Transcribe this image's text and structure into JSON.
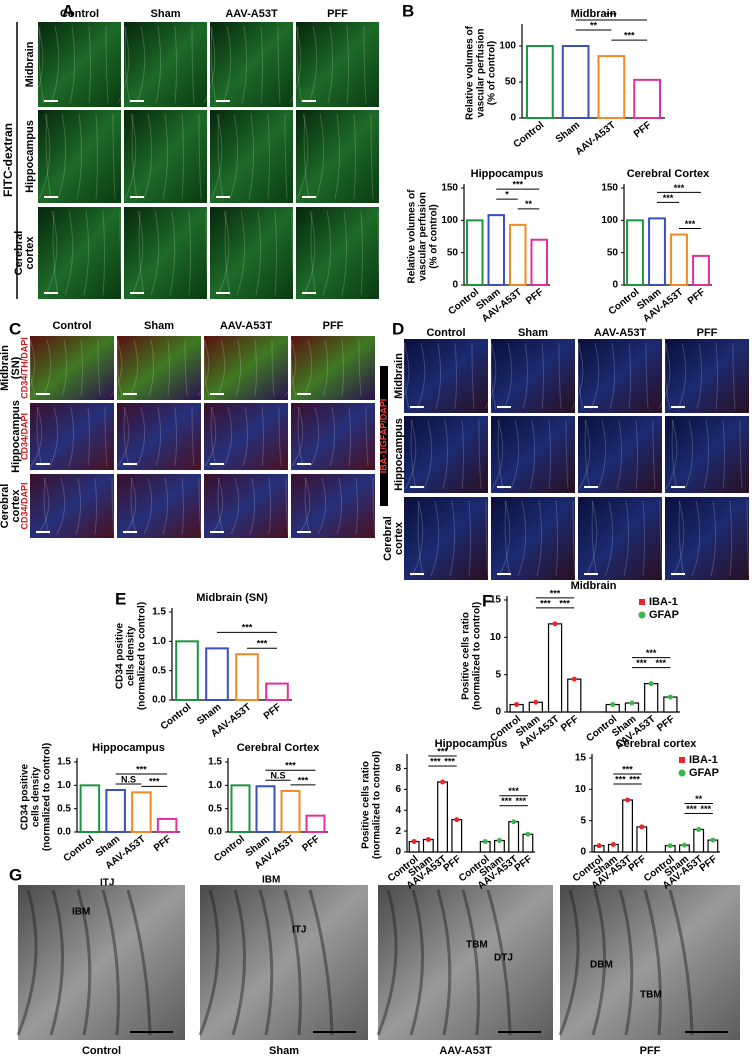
{
  "panels": {
    "A": {
      "letter": "A",
      "columns": [
        "Control",
        "Sham",
        "AAV-A53T",
        "PFF"
      ],
      "rows": [
        [
          "Midbrain"
        ],
        [
          "Hippocampus"
        ],
        [
          "Cerebral",
          "cortex"
        ]
      ],
      "stain": "FITC-dextran"
    },
    "B": {
      "letter": "B"
    },
    "C": {
      "letter": "C",
      "columns": [
        "Control",
        "Sham",
        "AAV-A53T",
        "PFF"
      ],
      "rows": [
        [
          "Midbrain",
          "(SN)"
        ],
        [
          "Hippocampus"
        ],
        [
          "Cerebral",
          "cortex"
        ]
      ],
      "stains": [
        "CD34/TH/DAPI",
        "CD34/DAPI",
        "CD34/DAPI"
      ]
    },
    "D": {
      "letter": "D",
      "columns": [
        "Control",
        "Sham",
        "AAV-A53T",
        "PFF"
      ],
      "rows": [
        [
          "Midbrain"
        ],
        [
          "Hippocampus"
        ],
        [
          "Cerebral",
          "cortex"
        ]
      ],
      "stain": "IBA-1/GFAP/DAPI"
    },
    "E": {
      "letter": "E"
    },
    "F": {
      "letter": "F"
    },
    "G": {
      "letter": "G",
      "captions": [
        "Control",
        "Sham",
        "AAV-A53T",
        "PFF"
      ],
      "labels": [
        [
          "ITJ",
          "IBM"
        ],
        [
          "IBM",
          "ITJ"
        ],
        [
          "TBM",
          "DTJ"
        ],
        [
          "DBM",
          "TBM"
        ]
      ]
    }
  },
  "chart_data": [
    {
      "type": "bar",
      "title": "Midbrain",
      "ylabel": [
        "Relative volumes of",
        "vascular perfusion",
        "(% of control)"
      ],
      "categories": [
        "Control",
        "Sham",
        "AAV-A53T",
        "PFF"
      ],
      "values": [
        100,
        100,
        86,
        53
      ],
      "colors": [
        "#1a9641",
        "#3a4fc4",
        "#f08a24",
        "#e0309a"
      ],
      "ylim": [
        0,
        125
      ],
      "yticks": [
        0,
        50,
        100
      ],
      "annotations": [
        "***",
        "**",
        "***"
      ]
    },
    {
      "type": "bar",
      "title": "Hippocampus",
      "ylabel": [
        "Relative volumes of",
        "vascular perfusion",
        "(% of control)"
      ],
      "categories": [
        "Control",
        "Sham",
        "AAV-A53T",
        "PFF"
      ],
      "values": [
        100,
        108,
        93,
        70
      ],
      "colors": [
        "#1a9641",
        "#3a4fc4",
        "#f08a24",
        "#e0309a"
      ],
      "ylim": [
        0,
        150
      ],
      "yticks": [
        0,
        50,
        100,
        150
      ],
      "annotations": [
        "***",
        "*",
        "**"
      ]
    },
    {
      "type": "bar",
      "title": "Cerebral Cortex",
      "categories": [
        "Control",
        "Sham",
        "AAV-A53T",
        "PFF"
      ],
      "values": [
        100,
        103,
        78,
        45
      ],
      "colors": [
        "#1a9641",
        "#3a4fc4",
        "#f08a24",
        "#e0309a"
      ],
      "ylim": [
        0,
        150
      ],
      "yticks": [
        0,
        50,
        100,
        150
      ],
      "annotations": [
        "***",
        "***",
        "***"
      ]
    },
    {
      "type": "bar",
      "title": "Midbrain (SN)",
      "ylabel": [
        "CD34 positive",
        "cells density",
        "(normalized to control)"
      ],
      "categories": [
        "Control",
        "Sham",
        "AAV-A53T",
        "PFF"
      ],
      "values": [
        1.0,
        0.88,
        0.78,
        0.28
      ],
      "colors": [
        "#1a9641",
        "#3a4fc4",
        "#f08a24",
        "#e0309a"
      ],
      "ylim": [
        0,
        1.5
      ],
      "yticks": [
        {
          "value": 0,
          "label": "0.0"
        },
        0.5,
        {
          "value": 1,
          "label": "1.0"
        },
        1.5
      ],
      "annotations": [
        "***",
        "***"
      ]
    },
    {
      "type": "bar",
      "title": "Hippocampus",
      "ylabel": [
        "CD34 positive",
        "cells density",
        "(normalized to control)"
      ],
      "categories": [
        "Control",
        "Sham",
        "AAV-A53T",
        "PFF"
      ],
      "values": [
        1.0,
        0.9,
        0.85,
        0.28
      ],
      "colors": [
        "#1a9641",
        "#3a4fc4",
        "#f08a24",
        "#e0309a"
      ],
      "ylim": [
        0,
        1.5
      ],
      "yticks": [
        {
          "value": 0,
          "label": "0.0"
        },
        0.5,
        {
          "value": 1,
          "label": "1.0"
        },
        1.5
      ],
      "annotations": [
        "N.S",
        "***",
        "***"
      ]
    },
    {
      "type": "bar",
      "title": "Cerebral Cortex",
      "categories": [
        "Control",
        "Sham",
        "AAV-A53T",
        "PFF"
      ],
      "values": [
        1.0,
        0.98,
        0.88,
        0.35
      ],
      "colors": [
        "#1a9641",
        "#3a4fc4",
        "#f08a24",
        "#e0309a"
      ],
      "ylim": [
        0,
        1.5
      ],
      "yticks": [
        {
          "value": 0,
          "label": "0.0"
        },
        0.5,
        {
          "value": 1,
          "label": "1.0"
        },
        1.5
      ],
      "annotations": [
        "N.S",
        "***",
        "***"
      ]
    },
    {
      "type": "grouped_bar",
      "title": "Midbrain",
      "ylabel": [
        "Positive cells ratio",
        "(normalized to control)"
      ],
      "categories": [
        "Control",
        "Sham",
        "AAV-A53T",
        "PFF"
      ],
      "series": [
        {
          "name": "IBA-1",
          "color": "#e8262b",
          "values": [
            1.0,
            1.3,
            11.8,
            4.4
          ]
        },
        {
          "name": "GFAP",
          "color": "#3cb54a",
          "values": [
            1.0,
            1.2,
            3.8,
            2.0
          ]
        }
      ],
      "ylim": [
        0,
        15
      ],
      "yticks": [
        0,
        5,
        10,
        15
      ],
      "legend": true,
      "annotations": [
        "***",
        "***",
        "***",
        "***",
        "***",
        "***"
      ]
    },
    {
      "type": "grouped_bar",
      "title": "Hippocampus",
      "ylabel": [
        "Positive cells ratio",
        "(normalized to control)"
      ],
      "categories": [
        "Control",
        "Sham",
        "AAV-A53T",
        "PFF"
      ],
      "series": [
        {
          "name": "IBA-1",
          "color": "#e8262b",
          "values": [
            1.0,
            1.2,
            6.7,
            3.1
          ]
        },
        {
          "name": "GFAP",
          "color": "#3cb54a",
          "values": [
            1.0,
            1.1,
            2.9,
            1.7
          ]
        }
      ],
      "ylim": [
        0,
        9
      ],
      "yticks": [
        0,
        2,
        4,
        6,
        8
      ],
      "legend": false,
      "annotations": [
        "***",
        "***",
        "***",
        "***",
        "***",
        "***"
      ]
    },
    {
      "type": "grouped_bar",
      "title": "Cerebral cortex",
      "categories": [
        "Control",
        "Sham",
        "AAV-A53T",
        "PFF"
      ],
      "series": [
        {
          "name": "IBA-1",
          "color": "#e8262b",
          "values": [
            1.0,
            1.2,
            8.3,
            4.0
          ]
        },
        {
          "name": "GFAP",
          "color": "#3cb54a",
          "values": [
            1.0,
            1.1,
            3.6,
            1.9
          ]
        }
      ],
      "ylim": [
        0,
        15
      ],
      "yticks": [
        0,
        5,
        10,
        15
      ],
      "legend": true,
      "annotations": [
        "***",
        "***",
        "***",
        "**",
        "***",
        "***"
      ]
    }
  ]
}
